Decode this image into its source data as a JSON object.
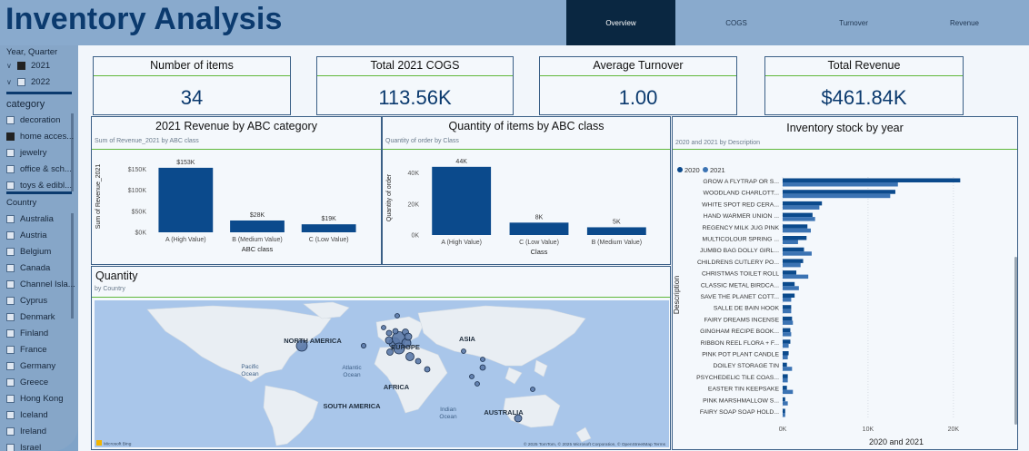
{
  "header": {
    "title": "Inventory Analysis",
    "tabs": [
      {
        "label": "Overview",
        "active": true
      },
      {
        "label": "COGS",
        "active": false
      },
      {
        "label": "Turnover",
        "active": false
      },
      {
        "label": "Revenue",
        "active": false
      }
    ]
  },
  "slicers": {
    "year_quarter": {
      "title": "Year, Quarter",
      "items": [
        {
          "label": "2021",
          "checked": true
        },
        {
          "label": "2022",
          "checked": false
        }
      ]
    },
    "category": {
      "title": "category",
      "items": [
        {
          "label": "decoration",
          "checked": false
        },
        {
          "label": "home acces...",
          "checked": true
        },
        {
          "label": "jewelry",
          "checked": false
        },
        {
          "label": "office & sch...",
          "checked": false
        },
        {
          "label": "toys & edibl...",
          "checked": false
        }
      ]
    },
    "country": {
      "title": "Country",
      "items": [
        "Australia",
        "Austria",
        "Belgium",
        "Canada",
        "Channel Isla...",
        "Cyprus",
        "Denmark",
        "Finland",
        "France",
        "Germany",
        "Greece",
        "Hong Kong",
        "Iceland",
        "Ireland",
        "Israel"
      ]
    }
  },
  "kpis": [
    {
      "title": "Number of items",
      "value": "34"
    },
    {
      "title": "Total 2021 COGS",
      "value": "113.56K"
    },
    {
      "title": "Average Turnover",
      "value": "1.00"
    },
    {
      "title": "Total Revenue",
      "value": "$461.84K"
    }
  ],
  "colors": {
    "accent": "#0b4a8c",
    "bar_2020": "#0b4a8c",
    "bar_2021": "#3b73b3",
    "green_rule": "#5fb83a"
  },
  "charts": {
    "revenue": {
      "title": "2021 Revenue by ABC category",
      "subtitle": "Sum of Revenue_2021 by ABC class"
    },
    "quantity": {
      "title": "Quantity of items by ABC class",
      "subtitle": "Quantity of order by Class"
    },
    "stock": {
      "title": "Inventory stock by year",
      "subtitle": "2020 and 2021 by Description"
    },
    "map": {
      "title": "Quantity",
      "subtitle": "by Country",
      "labels": [
        "NORTH AMERICA",
        "EUROPE",
        "ASIA",
        "AFRICA",
        "SOUTH AMERICA",
        "AUSTRALIA",
        "Pacific Ocean",
        "Atlantic Ocean",
        "Indian Ocean"
      ],
      "attribution": "© 2025 TomTom, © 2025 Microsoft Corporation, © OpenStreetMap  Terms",
      "logo": "Microsoft Bing"
    }
  },
  "chart_data": [
    {
      "type": "bar",
      "title": "2021 Revenue by ABC category",
      "subtitle": "Sum of Revenue_2021 by ABC class",
      "categories": [
        "A (High Value)",
        "B (Medium Value)",
        "C (Low Value)"
      ],
      "values": [
        153000,
        28000,
        19000
      ],
      "data_labels": [
        "$153K",
        "$28K",
        "$19K"
      ],
      "xlabel": "ABC class",
      "ylabel": "Sum of Revenue_2021",
      "yticks": [
        "$0K",
        "$50K",
        "$100K",
        "$150K"
      ],
      "ylim": [
        0,
        170000
      ]
    },
    {
      "type": "bar",
      "title": "Quantity of items by ABC class",
      "subtitle": "Quantity of order by Class",
      "categories": [
        "A (High Value)",
        "C (Low Value)",
        "B (Medium Value)"
      ],
      "values": [
        44000,
        8000,
        5000
      ],
      "data_labels": [
        "44K",
        "8K",
        "5K"
      ],
      "xlabel": "Class",
      "ylabel": "Quantity of order",
      "yticks": [
        "0K",
        "20K",
        "40K"
      ],
      "ylim": [
        0,
        48000
      ]
    },
    {
      "type": "bar",
      "orientation": "horizontal",
      "title": "Inventory stock by year",
      "subtitle": "2020 and 2021 by Description",
      "xlabel": "2020 and 2021",
      "ylabel": "Description",
      "xticks": [
        "0K",
        "10K",
        "20K"
      ],
      "xlim": [
        0,
        23000
      ],
      "categories": [
        "GROW A FLYTRAP OR S...",
        "WOODLAND CHARLOTT...",
        "WHITE SPOT RED CERA...",
        "HAND WARMER UNION ...",
        "REGENCY MILK JUG PINK",
        "MULTICOLOUR SPRING ...",
        "JUMBO BAG DOLLY GIRL...",
        "CHILDRENS CUTLERY PO...",
        "CHRISTMAS TOILET ROLL",
        "CLASSIC METAL BIRDCA...",
        "SAVE THE PLANET COTT...",
        "SALLE DE BAIN HOOK",
        "FAIRY DREAMS INCENSE",
        "GINGHAM RECIPE BOOK...",
        "RIBBON REEL FLORA + F...",
        "PINK POT PLANT CANDLE",
        "DOILEY STORAGE TIN",
        "PSYCHEDELIC TILE COAS...",
        "EASTER TIN KEEPSAKE",
        "PINK MARSHMALLOW S...",
        "FAIRY SOAP SOAP HOLD..."
      ],
      "series": [
        {
          "name": "2020",
          "values": [
            20800,
            13200,
            4600,
            3500,
            2900,
            2800,
            2500,
            2400,
            1600,
            1400,
            1400,
            1000,
            1100,
            900,
            900,
            700,
            500,
            600,
            500,
            300,
            300
          ]
        },
        {
          "name": "2021",
          "values": [
            13500,
            12600,
            4300,
            3800,
            3300,
            1800,
            3400,
            2100,
            3000,
            1900,
            1000,
            1000,
            1200,
            1000,
            700,
            600,
            1100,
            600,
            1200,
            600,
            300
          ]
        }
      ]
    }
  ]
}
